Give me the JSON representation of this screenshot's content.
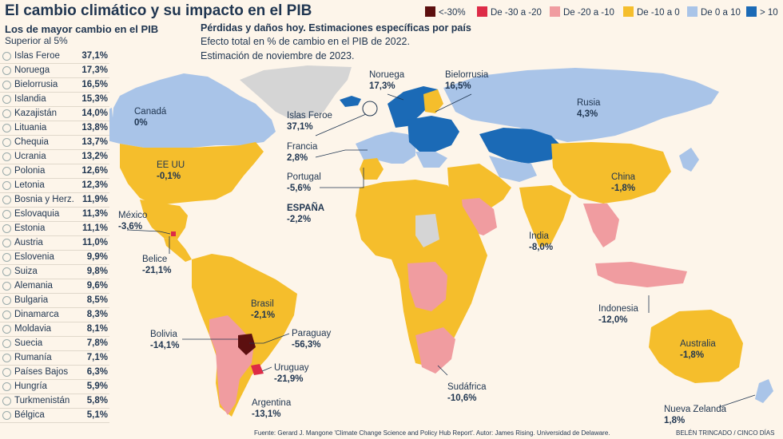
{
  "title": "El cambio climático y su impacto en el PIB",
  "legend": [
    {
      "label": "<-30%",
      "color": "#5c0f0f"
    },
    {
      "label": "De -30 a -20",
      "color": "#dd2b47"
    },
    {
      "label": "De -20 a -10",
      "color": "#f09ca0"
    },
    {
      "label": "De -10 a 0",
      "color": "#f5be2c"
    },
    {
      "label": "De 0 a 10",
      "color": "#a9c4e8"
    },
    {
      "label": "> 10",
      "color": "#1b6ab6"
    }
  ],
  "ranking": {
    "heading": "Los de mayor cambio en el PIB",
    "subheading": "Superior al 5%",
    "rows": [
      {
        "name": "Islas Feroe",
        "value": "37,1%"
      },
      {
        "name": "Noruega",
        "value": "17,3%"
      },
      {
        "name": "Bielorrusia",
        "value": "16,5%"
      },
      {
        "name": "Islandia",
        "value": "15,3%"
      },
      {
        "name": "Kazajistán",
        "value": "14,0%"
      },
      {
        "name": "Lituania",
        "value": "13,8%"
      },
      {
        "name": "Chequia",
        "value": "13,7%"
      },
      {
        "name": "Ucrania",
        "value": "13,2%"
      },
      {
        "name": "Polonia",
        "value": "12,6%"
      },
      {
        "name": "Letonia",
        "value": "12,3%"
      },
      {
        "name": "Bosnia y Herz.",
        "value": "11,9%"
      },
      {
        "name": "Eslovaquia",
        "value": "11,3%"
      },
      {
        "name": "Estonia",
        "value": "11,1%"
      },
      {
        "name": "Austria",
        "value": "11,0%"
      },
      {
        "name": "Eslovenia",
        "value": "9,9%"
      },
      {
        "name": "Suiza",
        "value": "9,8%"
      },
      {
        "name": "Alemania",
        "value": "9,6%"
      },
      {
        "name": "Bulgaria",
        "value": "8,5%"
      },
      {
        "name": "Dinamarca",
        "value": "8,3%"
      },
      {
        "name": "Moldavia",
        "value": "8,1%"
      },
      {
        "name": "Suecia",
        "value": "7,8%"
      },
      {
        "name": "Rumanía",
        "value": "7,1%"
      },
      {
        "name": "Países Bajos",
        "value": "6,3%"
      },
      {
        "name": "Hungría",
        "value": "5,9%"
      },
      {
        "name": "Turkmenistán",
        "value": "5,8%"
      },
      {
        "name": "Bélgica",
        "value": "5,1%"
      }
    ]
  },
  "info": {
    "heading": "Pérdidas y daños hoy. Estimaciones específicas por país",
    "line1": "Efecto total en % de cambio en el PIB de 2022.",
    "line2": "Estimación de noviembre de 2023."
  },
  "labels": [
    {
      "id": "canada",
      "name": "Canadá",
      "value": "0%"
    },
    {
      "id": "eeuu",
      "name": "EE UU",
      "value": "-0,1%"
    },
    {
      "id": "mexico",
      "name": "México",
      "value": "-3,6%"
    },
    {
      "id": "belice",
      "name": "Belice",
      "value": "-21,1%"
    },
    {
      "id": "brasil",
      "name": "Brasil",
      "value": "-2,1%"
    },
    {
      "id": "bolivia",
      "name": "Bolivia",
      "value": "-14,1%"
    },
    {
      "id": "paraguay",
      "name": "Paraguay",
      "value": "-56,3%"
    },
    {
      "id": "uruguay",
      "name": "Uruguay",
      "value": "-21,9%"
    },
    {
      "id": "argentina",
      "name": "Argentina",
      "value": "-13,1%"
    },
    {
      "id": "feroe",
      "name": "Islas Feroe",
      "value": "37,1%"
    },
    {
      "id": "francia",
      "name": "Francia",
      "value": "2,8%"
    },
    {
      "id": "portugal",
      "name": "Portugal",
      "value": "-5,6%"
    },
    {
      "id": "espana",
      "name": "ESPAÑA",
      "value": "-2,2%"
    },
    {
      "id": "noruega",
      "name": "Noruega",
      "value": "17,3%"
    },
    {
      "id": "bielorrusia",
      "name": "Bielorrusia",
      "value": "16,5%"
    },
    {
      "id": "rusia",
      "name": "Rusia",
      "value": "4,3%"
    },
    {
      "id": "china",
      "name": "China",
      "value": "-1,8%"
    },
    {
      "id": "india",
      "name": "India",
      "value": "-8,0%"
    },
    {
      "id": "indonesia",
      "name": "Indonesia",
      "value": "-12,0%"
    },
    {
      "id": "australia",
      "name": "Australia",
      "value": "-1,8%"
    },
    {
      "id": "nz",
      "name": "Nueva Zelanda",
      "value": "1,8%"
    },
    {
      "id": "sudafrica",
      "name": "Sudáfrica",
      "value": "-10,6%"
    }
  ],
  "source": "Fuente: Gerard J. Mangone 'Climate Change Science and Policy Hub Report'. Autor: James Rising. Universidad de Delaware.",
  "credit": "BELÉN TRINCADO / CINCO DÍAS"
}
